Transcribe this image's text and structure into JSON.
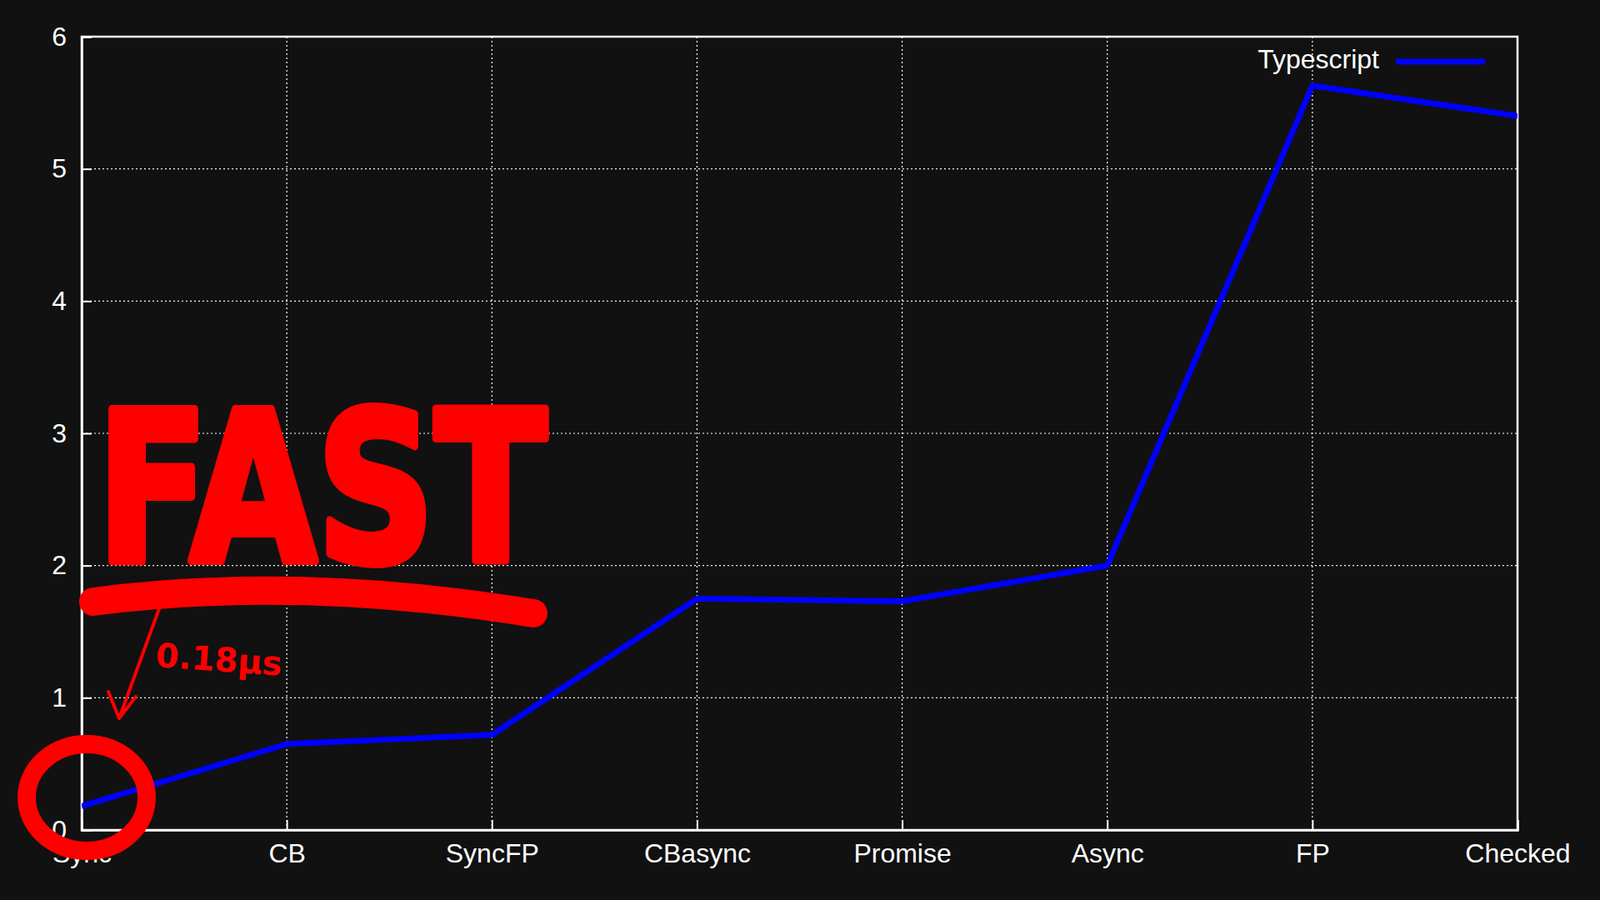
{
  "chart_data": {
    "type": "line",
    "categories": [
      "Sync",
      "CB",
      "SyncFP",
      "CBasync",
      "Promise",
      "Async",
      "FP",
      "Checked"
    ],
    "series": [
      {
        "name": "Typescript",
        "color": "#0000ff",
        "values": [
          0.18,
          0.65,
          0.72,
          1.75,
          1.73,
          2.0,
          5.63,
          5.4
        ]
      }
    ],
    "ylim": [
      0,
      6
    ],
    "yticks": [
      0,
      1,
      2,
      3,
      4,
      5,
      6
    ],
    "grid": true,
    "legend": "top-right",
    "annotations": [
      "FAST",
      "0.18µs"
    ]
  }
}
